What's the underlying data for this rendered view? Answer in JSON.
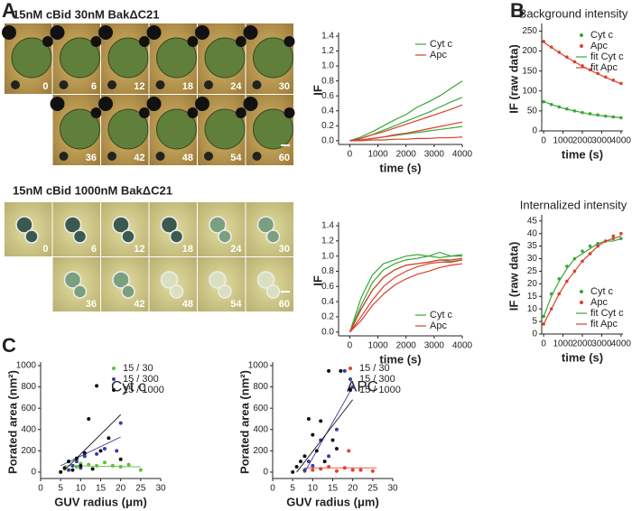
{
  "panels": {
    "A": {
      "label": "A",
      "rows": [
        {
          "title": "15nM cBid 30nM BakΔC21",
          "frames": [
            "0",
            "6",
            "12",
            "18",
            "24",
            "30",
            "36",
            "42",
            "48",
            "54",
            "60"
          ]
        },
        {
          "title": "15nM cBid 1000nM BakΔC21",
          "frames": [
            "0",
            "6",
            "12",
            "18",
            "24",
            "30",
            "36",
            "42",
            "48",
            "54",
            "60"
          ]
        }
      ]
    },
    "B": {
      "label": "B"
    },
    "C": {
      "label": "C"
    }
  },
  "chart_data": [
    {
      "type": "line",
      "ylabel": "IF",
      "xlabel": "time (s)",
      "legend": "upper right",
      "x": [
        0,
        400,
        800,
        1200,
        1600,
        2000,
        2400,
        2800,
        3200,
        3600,
        4000
      ],
      "xlim": [
        -400,
        4000
      ],
      "xticks": [
        0,
        1000,
        2000,
        3000,
        4000
      ],
      "ylim": [
        -0.05,
        1.4
      ],
      "yticks": [
        {
          "value": 0,
          "label": "0.0"
        },
        {
          "value": 0.2,
          "label": "0.2"
        },
        {
          "value": 0.4,
          "label": "0.4"
        },
        {
          "value": 0.6,
          "label": "0.6"
        },
        {
          "value": 0.8,
          "label": "0.8"
        },
        {
          "value": 1,
          "label": "1.0"
        },
        {
          "value": 1.2,
          "label": "1.2"
        },
        {
          "value": 1.4,
          "label": "1.4"
        }
      ],
      "series": [
        {
          "name": "Cyt c",
          "color": "#3aa63a",
          "style": "line",
          "values": [
            0,
            0.05,
            0.12,
            0.2,
            0.28,
            0.35,
            0.45,
            0.52,
            0.6,
            0.7,
            0.8
          ]
        },
        {
          "name": "Cyt c",
          "color": "#3aa63a",
          "style": "line",
          "values": [
            0,
            0.03,
            0.08,
            0.14,
            0.2,
            0.26,
            0.32,
            0.38,
            0.45,
            0.52,
            0.58
          ]
        },
        {
          "name": "Cyt c",
          "color": "#3aa63a",
          "style": "line",
          "values": [
            0,
            0.01,
            0.03,
            0.05,
            0.07,
            0.09,
            0.11,
            0.13,
            0.15,
            0.17,
            0.19
          ]
        },
        {
          "name": "Apc",
          "color": "#d9402a",
          "style": "line",
          "values": [
            0,
            0.03,
            0.08,
            0.12,
            0.17,
            0.22,
            0.27,
            0.32,
            0.37,
            0.42,
            0.48
          ]
        },
        {
          "name": "Apc",
          "color": "#d9402a",
          "style": "line",
          "values": [
            0,
            0.01,
            0.03,
            0.05,
            0.08,
            0.1,
            0.13,
            0.16,
            0.19,
            0.22,
            0.25
          ]
        },
        {
          "name": "Apc",
          "color": "#d9402a",
          "style": "line",
          "values": [
            0,
            0,
            0.01,
            0.01,
            0.02,
            0.02,
            0.03,
            0.03,
            0.04,
            0.04,
            0.05
          ]
        }
      ]
    },
    {
      "type": "line",
      "ylabel": "IF",
      "xlabel": "time (s)",
      "legend": "lower right",
      "x": [
        0,
        400,
        800,
        1200,
        1600,
        2000,
        2400,
        2800,
        3200,
        3600,
        4000
      ],
      "xlim": [
        -400,
        4000
      ],
      "xticks": [
        0,
        1000,
        2000,
        3000,
        4000
      ],
      "ylim": [
        -0.05,
        1.4
      ],
      "yticks": [
        {
          "value": 0,
          "label": "0.0"
        },
        {
          "value": 0.2,
          "label": "0.2"
        },
        {
          "value": 0.4,
          "label": "0.4"
        },
        {
          "value": 0.6,
          "label": "0.6"
        },
        {
          "value": 0.8,
          "label": "0.8"
        },
        {
          "value": 1,
          "label": "1.0"
        },
        {
          "value": 1.2,
          "label": "1.2"
        },
        {
          "value": 1.4,
          "label": "1.4"
        }
      ],
      "series": [
        {
          "name": "Cyt c",
          "color": "#3aa63a",
          "style": "line",
          "values": [
            0,
            0.45,
            0.75,
            0.9,
            0.95,
            1.0,
            1.02,
            1.0,
            1.05,
            1.0,
            1.02
          ]
        },
        {
          "name": "Cyt c",
          "color": "#3aa63a",
          "style": "line",
          "values": [
            0,
            0.35,
            0.65,
            0.82,
            0.9,
            0.95,
            0.97,
            1.0,
            0.98,
            1.0,
            1.0
          ]
        },
        {
          "name": "Cyt c",
          "color": "#3aa63a",
          "style": "line",
          "values": [
            0,
            0.3,
            0.55,
            0.72,
            0.82,
            0.88,
            0.9,
            0.92,
            0.95,
            0.93,
            0.95
          ]
        },
        {
          "name": "Apc",
          "color": "#d9402a",
          "style": "line",
          "values": [
            0,
            0.3,
            0.55,
            0.72,
            0.82,
            0.88,
            0.9,
            0.92,
            0.95,
            0.95,
            0.97
          ]
        },
        {
          "name": "Apc",
          "color": "#d9402a",
          "style": "line",
          "values": [
            0,
            0.2,
            0.42,
            0.6,
            0.72,
            0.8,
            0.86,
            0.9,
            0.92,
            0.92,
            0.95
          ]
        },
        {
          "name": "Apc",
          "color": "#d9402a",
          "style": "line",
          "values": [
            0,
            0.15,
            0.35,
            0.5,
            0.62,
            0.7,
            0.76,
            0.8,
            0.85,
            0.88,
            0.9
          ]
        }
      ]
    },
    {
      "type": "line",
      "title": "Background intensity",
      "ylabel": "IF (raw data)",
      "xlabel": "time (s)",
      "legend": "upper right",
      "x": [
        0,
        400,
        800,
        1200,
        1600,
        2000,
        2400,
        2800,
        3200,
        3600,
        4000
      ],
      "xlim": [
        -100,
        4100
      ],
      "xticks": [
        0,
        1000,
        2000,
        3000,
        4000
      ],
      "ylim": [
        0,
        260
      ],
      "yticks": [
        0,
        50,
        100,
        150,
        200,
        250
      ],
      "series": [
        {
          "name": "Cyt c",
          "color": "#3aa63a",
          "style": "marker",
          "values": [
            73,
            66,
            60,
            55,
            50,
            46,
            43,
            40,
            37,
            35,
            33
          ]
        },
        {
          "name": "Apc",
          "color": "#d9402a",
          "style": "marker",
          "values": [
            224,
            210,
            197,
            185,
            173,
            163,
            153,
            144,
            135,
            127,
            119
          ]
        },
        {
          "name": "fit Cyt c",
          "color": "#3aa63a",
          "style": "line",
          "values": [
            74,
            66,
            60,
            54,
            50,
            46,
            42,
            39,
            37,
            35,
            33
          ]
        },
        {
          "name": "fit Apc",
          "color": "#d9402a",
          "style": "line",
          "values": [
            222,
            209,
            196,
            184,
            173,
            162,
            152,
            143,
            134,
            126,
            118
          ]
        }
      ]
    },
    {
      "type": "line",
      "title": "Internalized intensity",
      "ylabel": "IF (raw data)",
      "xlabel": "time (s)",
      "legend": "lower right",
      "x": [
        0,
        400,
        800,
        1200,
        1600,
        2000,
        2400,
        2800,
        3200,
        3600,
        4000
      ],
      "xlim": [
        -100,
        4100
      ],
      "xticks": [
        0,
        1000,
        2000,
        3000,
        4000
      ],
      "ylim": [
        0,
        46
      ],
      "yticks": [
        0,
        5,
        10,
        15,
        20,
        25,
        30,
        35,
        40,
        45
      ],
      "series": [
        {
          "name": "Cyt c",
          "color": "#3aa63a",
          "style": "marker",
          "values": [
            7,
            16,
            22,
            27,
            30,
            33,
            35,
            36,
            37,
            38,
            38
          ]
        },
        {
          "name": "Apc",
          "color": "#d9402a",
          "style": "marker",
          "values": [
            4,
            10,
            16,
            21,
            25,
            29,
            32,
            35,
            37,
            39,
            40
          ]
        },
        {
          "name": "fit Cyt c",
          "color": "#3aa63a",
          "style": "line",
          "values": [
            7,
            15,
            21,
            26,
            30,
            32,
            34,
            36,
            37,
            37,
            38
          ]
        },
        {
          "name": "fit Apc",
          "color": "#d9402a",
          "style": "line",
          "values": [
            4,
            10,
            16,
            21,
            25,
            29,
            32,
            35,
            37,
            38,
            39
          ]
        }
      ]
    },
    {
      "type": "scatter",
      "annotation": "Cyt c",
      "ylabel": "Porated area (nm²)",
      "xlabel": "GUV radius (μm)",
      "legend": "upper center",
      "xlim": [
        0,
        30
      ],
      "xticks": [
        0,
        5,
        10,
        15,
        20,
        25,
        30
      ],
      "ylim": [
        -60,
        1000
      ],
      "yticks": [
        0,
        200,
        400,
        600,
        800,
        1000
      ],
      "series": [
        {
          "name": "15 / 30",
          "color": "#5cc040",
          "x": [
            6,
            7,
            8,
            9,
            10,
            11,
            12,
            14,
            16,
            18,
            20,
            22,
            25
          ],
          "values": [
            30,
            100,
            60,
            50,
            80,
            150,
            70,
            60,
            90,
            60,
            50,
            70,
            20
          ],
          "fit_x": [
            6,
            25
          ],
          "fit_y": [
            60,
            50
          ]
        },
        {
          "name": "15 / 300",
          "color": "#3a3aa8",
          "x": [
            7,
            8,
            9,
            10,
            11,
            14,
            16,
            19,
            20
          ],
          "values": [
            20,
            60,
            100,
            40,
            150,
            170,
            220,
            200,
            460
          ],
          "fit_x": [
            5,
            20
          ],
          "fit_y": [
            60,
            330
          ]
        },
        {
          "name": "15 / 1000",
          "color": "#111111",
          "x": [
            5,
            6,
            7,
            8,
            9,
            10,
            11,
            12,
            13,
            14,
            15,
            17,
            20
          ],
          "values": [
            0,
            40,
            100,
            20,
            130,
            60,
            180,
            500,
            30,
            810,
            200,
            320,
            120
          ],
          "fit_x": [
            6,
            20
          ],
          "fit_y": [
            20,
            540
          ]
        }
      ]
    },
    {
      "type": "scatter",
      "annotation": "APC",
      "ylabel": "Porated area (nm²)",
      "xlabel": "GUV radius (μm)",
      "legend": "upper right",
      "xlim": [
        0,
        30
      ],
      "xticks": [
        0,
        5,
        10,
        15,
        20,
        25,
        30
      ],
      "ylim": [
        -60,
        1000
      ],
      "yticks": [
        0,
        200,
        400,
        600,
        800,
        1000
      ],
      "series": [
        {
          "name": "15 / 30",
          "color": "#e8402a",
          "x": [
            8,
            10,
            12,
            14,
            16,
            18,
            19,
            20,
            22,
            25
          ],
          "values": [
            10,
            20,
            30,
            50,
            10,
            40,
            200,
            20,
            20,
            10
          ],
          "fit_x": [
            8,
            26
          ],
          "fit_y": [
            40,
            40
          ]
        },
        {
          "name": "15 / 300",
          "color": "#3a3aa8",
          "x": [
            8,
            9,
            10,
            12,
            14,
            16,
            18,
            20
          ],
          "values": [
            20,
            100,
            60,
            300,
            150,
            400,
            950,
            800
          ],
          "fit_x": [
            8,
            20
          ],
          "fit_y": [
            0,
            800
          ]
        },
        {
          "name": "15 / 1000",
          "color": "#111111",
          "x": [
            5,
            6,
            7,
            8,
            9,
            10,
            11,
            12,
            13,
            14,
            15,
            16,
            17
          ],
          "values": [
            0,
            50,
            100,
            150,
            500,
            350,
            200,
            480,
            100,
            950,
            300,
            220,
            950
          ],
          "fit_x": [
            6,
            20
          ],
          "fit_y": [
            0,
            680
          ]
        }
      ]
    }
  ]
}
